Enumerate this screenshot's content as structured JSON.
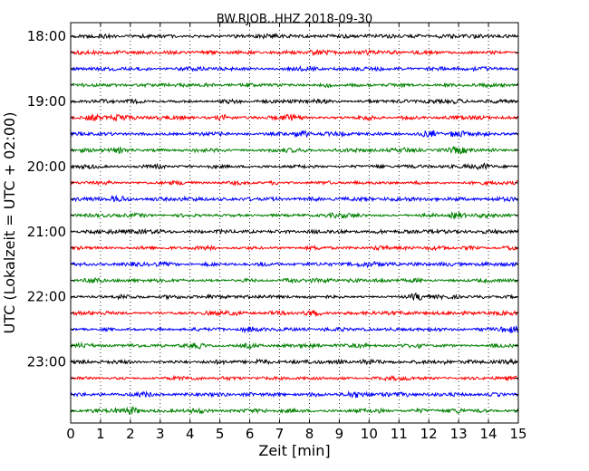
{
  "chart_data": {
    "type": "line",
    "title": "BW.RJOB..HHZ 2018-09-30",
    "xlabel": "Zeit  [min]",
    "ylabel": "UTC (Lokalzeit = UTC + 02:00)",
    "xlim": [
      0,
      15
    ],
    "x_ticks": [
      "0",
      "1",
      "2",
      "3",
      "4",
      "5",
      "6",
      "7",
      "8",
      "9",
      "10",
      "11",
      "12",
      "13",
      "14",
      "15"
    ],
    "y_tick_labels": [
      "18:00",
      "19:00",
      "20:00",
      "21:00",
      "22:00",
      "23:00"
    ],
    "trace_count": 24,
    "trace_colors": [
      "#000000",
      "#ff0000",
      "#0000ff",
      "#008000"
    ],
    "grid": "vertical dotted lines at each minute"
  }
}
